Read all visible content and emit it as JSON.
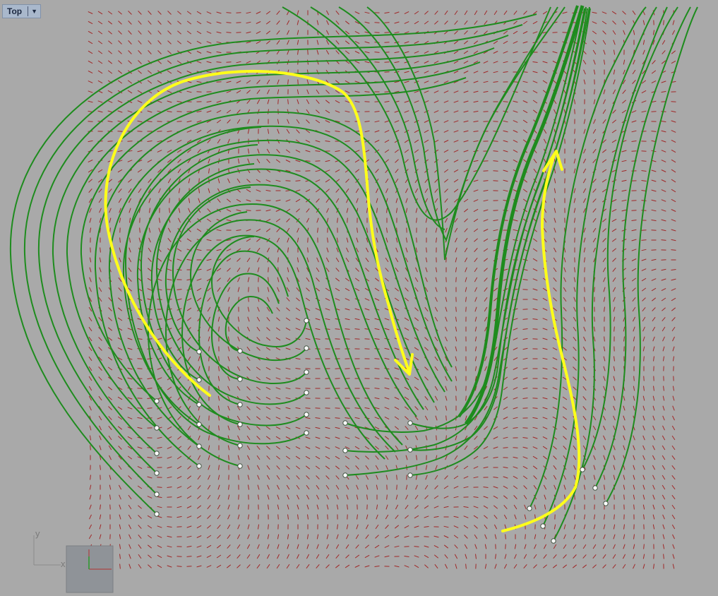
{
  "viewport": {
    "name": "Top",
    "menu_icon": "chevron-down-icon"
  },
  "axes": {
    "x_label": "x",
    "y_label": "y"
  },
  "colors": {
    "background": "#a9a9a9",
    "vectors": "#a02828",
    "streamlines": "#1e8c1e",
    "highlight_arrows": "#ffff1a",
    "seed_points": "#ffffff"
  }
}
